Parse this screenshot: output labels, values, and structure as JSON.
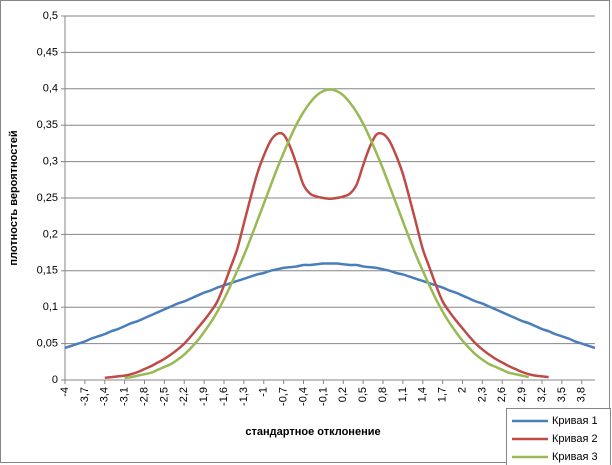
{
  "chart_data": {
    "type": "line",
    "x_label": "стандартное отклонение",
    "y_label": "плотность вероятностей",
    "categories": [
      "-4",
      null,
      null,
      "-3,7",
      null,
      null,
      "-3,4",
      null,
      null,
      "-3,1",
      null,
      null,
      "-2,8",
      null,
      null,
      "-2,5",
      null,
      null,
      "-2,2",
      null,
      null,
      "-1,9",
      null,
      null,
      "-1,6",
      null,
      null,
      "-1,3",
      null,
      null,
      "-1",
      null,
      null,
      "-0,7",
      null,
      null,
      "-0,4",
      null,
      null,
      "-0,1",
      null,
      null,
      "0,2",
      null,
      null,
      "0,5",
      null,
      null,
      "0,8",
      null,
      null,
      "1,1",
      null,
      null,
      "1,4",
      null,
      null,
      "1,7",
      null,
      null,
      "2",
      null,
      null,
      "2,3",
      null,
      null,
      "2,6",
      null,
      null,
      "2,9",
      null,
      null,
      "3,2",
      null,
      null,
      "3,5",
      null,
      null,
      "3,8",
      null,
      null
    ],
    "ylim": [
      0,
      0.5
    ],
    "yticks": [
      0,
      {
        "value": 0.05,
        "label": "0,05"
      },
      {
        "value": 0.1,
        "label": "0,1"
      },
      {
        "value": 0.15,
        "label": "0,15"
      },
      {
        "value": 0.2,
        "label": "0,2"
      },
      {
        "value": 0.25,
        "label": "0,25"
      },
      {
        "value": 0.3,
        "label": "0,3"
      },
      {
        "value": 0.35,
        "label": "0,35"
      },
      {
        "value": 0.4,
        "label": "0,4"
      },
      {
        "value": 0.45,
        "label": "0,45"
      },
      {
        "value": 0.5,
        "label": "0,5"
      }
    ],
    "grid": true,
    "legend_position": "bottom-right",
    "series": [
      {
        "name": "Кривая 1",
        "color": "#4a7ebb",
        "values": [
          0.044,
          0.047,
          0.05,
          0.053,
          0.057,
          0.06,
          0.063,
          0.067,
          0.07,
          0.074,
          0.078,
          0.081,
          0.085,
          0.089,
          0.093,
          0.097,
          0.101,
          0.105,
          0.108,
          0.112,
          0.116,
          0.12,
          0.123,
          0.127,
          0.13,
          0.133,
          0.136,
          0.139,
          0.142,
          0.145,
          0.147,
          0.15,
          0.152,
          0.154,
          0.155,
          0.156,
          0.158,
          0.158,
          0.159,
          0.16,
          0.16,
          0.16,
          0.159,
          0.158,
          0.158,
          0.156,
          0.155,
          0.154,
          0.152,
          0.15,
          0.147,
          0.145,
          0.142,
          0.139,
          0.136,
          0.133,
          0.13,
          0.127,
          0.123,
          0.12,
          0.116,
          0.112,
          0.108,
          0.105,
          0.101,
          0.097,
          0.093,
          0.089,
          0.085,
          0.081,
          0.078,
          0.074,
          0.07,
          0.067,
          0.063,
          0.06,
          0.057,
          0.053,
          0.05,
          0.047,
          0.044
        ]
      },
      {
        "name": "Кривая 2",
        "color": "#be4b48",
        "values": [
          null,
          null,
          null,
          null,
          null,
          null,
          0.003,
          0.004,
          0.005,
          0.006,
          0.008,
          0.011,
          0.015,
          0.019,
          0.024,
          0.029,
          0.035,
          0.042,
          0.05,
          0.06,
          0.071,
          0.082,
          0.094,
          0.108,
          0.13,
          0.155,
          0.18,
          0.215,
          0.25,
          0.283,
          0.308,
          0.328,
          0.338,
          0.337,
          0.32,
          0.295,
          0.268,
          0.256,
          0.252,
          0.25,
          0.249,
          0.25,
          0.252,
          0.256,
          0.268,
          0.295,
          0.32,
          0.337,
          0.338,
          0.328,
          0.308,
          0.283,
          0.25,
          0.215,
          0.18,
          0.155,
          0.13,
          0.108,
          0.094,
          0.082,
          0.071,
          0.06,
          0.05,
          0.042,
          0.035,
          0.029,
          0.024,
          0.019,
          0.015,
          0.011,
          0.008,
          0.006,
          0.005,
          0.004,
          null,
          null,
          null,
          null,
          null,
          null,
          null
        ]
      },
      {
        "name": "Кривая 3",
        "color": "#98b954",
        "values": [
          null,
          null,
          null,
          null,
          null,
          null,
          null,
          null,
          null,
          0.003,
          0.004,
          0.006,
          0.008,
          0.01,
          0.014,
          0.018,
          0.022,
          0.028,
          0.035,
          0.044,
          0.054,
          0.066,
          0.079,
          0.094,
          0.111,
          0.13,
          0.15,
          0.171,
          0.194,
          0.218,
          0.242,
          0.266,
          0.29,
          0.312,
          0.333,
          0.352,
          0.368,
          0.381,
          0.391,
          0.397,
          0.399,
          0.397,
          0.391,
          0.381,
          0.368,
          0.352,
          0.333,
          0.312,
          0.29,
          0.266,
          0.242,
          0.218,
          0.194,
          0.171,
          0.15,
          0.13,
          0.111,
          0.094,
          0.079,
          0.066,
          0.054,
          0.044,
          0.035,
          0.028,
          0.022,
          0.018,
          0.014,
          0.01,
          0.008,
          0.006,
          0.004,
          null,
          null,
          null,
          null,
          null,
          null,
          null,
          null,
          null,
          null
        ]
      }
    ]
  }
}
